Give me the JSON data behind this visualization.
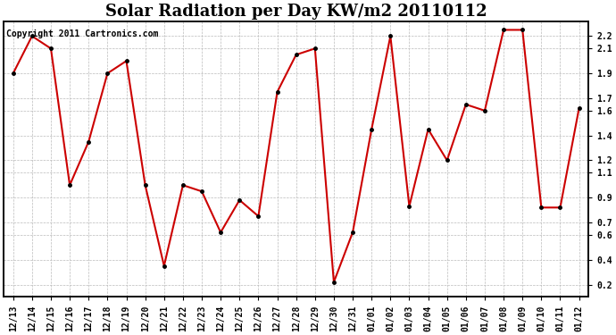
{
  "title": "Solar Radiation per Day KW/m2 20110112",
  "copyright_text": "Copyright 2011 Cartronics.com",
  "x_labels": [
    "12/13",
    "12/14",
    "12/15",
    "12/16",
    "12/17",
    "12/18",
    "12/19",
    "12/20",
    "12/21",
    "12/22",
    "12/23",
    "12/24",
    "12/25",
    "12/26",
    "12/27",
    "12/28",
    "12/29",
    "12/30",
    "12/31",
    "01/01",
    "01/02",
    "01/03",
    "01/04",
    "01/05",
    "01/06",
    "01/07",
    "01/08",
    "01/09",
    "01/10",
    "01/11",
    "01/12"
  ],
  "y_values": [
    1.9,
    2.2,
    2.1,
    1.0,
    1.35,
    1.9,
    2.0,
    1.0,
    0.35,
    1.0,
    0.95,
    0.62,
    0.88,
    0.75,
    1.75,
    2.05,
    2.1,
    0.22,
    0.62,
    1.45,
    2.2,
    0.83,
    1.45,
    1.2,
    1.65,
    1.6,
    2.25,
    2.25,
    0.82,
    0.82,
    1.62
  ],
  "line_color": "#cc0000",
  "marker_color": "#000000",
  "background_color": "#ffffff",
  "grid_color": "#bbbbbb",
  "ylim": [
    0.1,
    2.32
  ],
  "yticks": [
    0.2,
    0.4,
    0.6,
    0.7,
    0.9,
    1.1,
    1.2,
    1.4,
    1.6,
    1.7,
    1.9,
    2.1,
    2.2
  ],
  "title_fontsize": 13,
  "copyright_fontsize": 7,
  "tick_fontsize": 7
}
